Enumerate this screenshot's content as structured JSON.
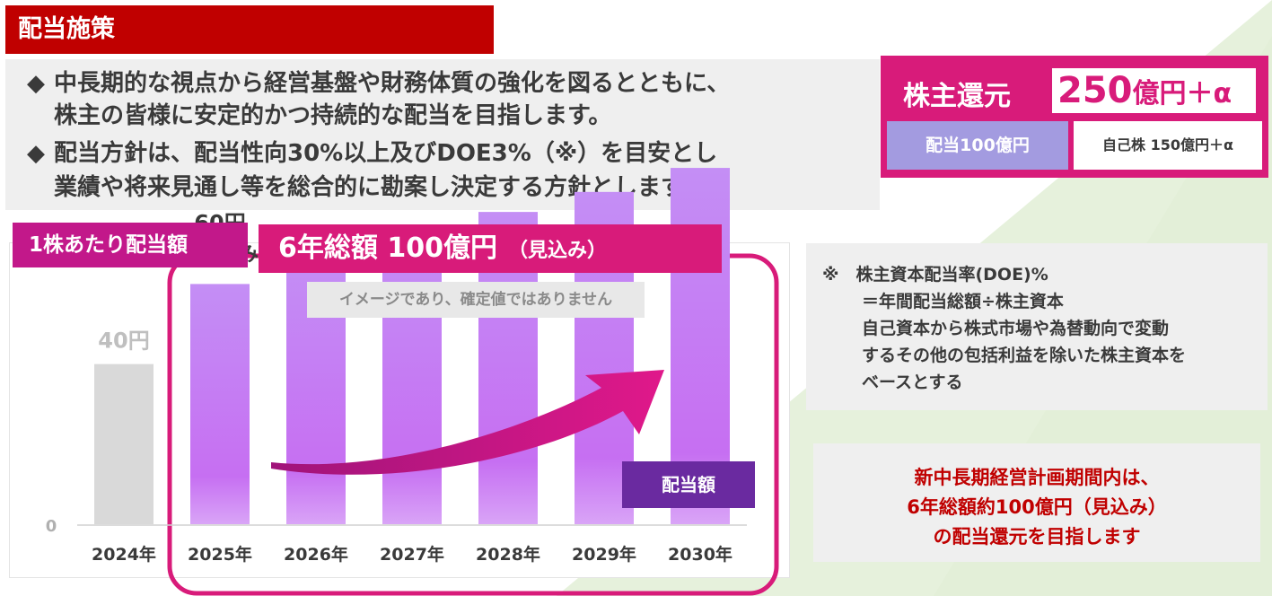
{
  "header": {
    "title": "配当施策"
  },
  "policy": {
    "bullet_glyph": "◆",
    "lines": [
      "中長期的な視点から経営基盤や財務体質の強化を図るとともに、",
      "株主の皆様に安定的かつ持続的な配当を目指します。",
      "配当方針は、配当性向30%以上及びDOE3%（※）を目安とし",
      "業績や将来見通し等を総合的に勘案し決定する方針とします。"
    ]
  },
  "shareholder_return": {
    "label": "株主還元",
    "amount": "250",
    "amount_unit": "億円＋α",
    "dividend": "配当100億円",
    "buyback": "自己株 150億円＋α"
  },
  "chart_header": {
    "per_share_label": "1株あたり配当額",
    "total_main": "6年総額 100億円",
    "total_sub": "（見込み）",
    "image_note": "イメージであり、確定値ではありません"
  },
  "chart_data": {
    "type": "bar",
    "categories": [
      "2024年",
      "2025年",
      "2026年",
      "2027年",
      "2028年",
      "2029年",
      "2030年"
    ],
    "values": [
      40,
      60,
      66,
      71,
      78,
      83,
      89
    ],
    "data_labels": {
      "2024年": "40円",
      "2025年": "60円"
    },
    "sub_label_2025": "（見込み）",
    "y_tick_label": "0",
    "ylim": [
      0,
      100
    ],
    "legend": "配当額",
    "colors": {
      "actual": "#d9d9d9",
      "forecast_top": "#c48ef5",
      "forecast_bottom": "#c66ff2",
      "arrow": "#d81b7a"
    }
  },
  "note": {
    "lines": [
      "※　株主資本配当率(DOE)%",
      "＝年間配当総額÷株主資本",
      "自己資本から株式市場や為替動向で変動",
      "するその他の包括利益を除いた株主資本を",
      "ベースとする"
    ]
  },
  "message": {
    "lines": [
      "新中長期経営計画期間内は、",
      "6年総額約100億円（見込み）",
      "の配当還元を目指します"
    ]
  }
}
